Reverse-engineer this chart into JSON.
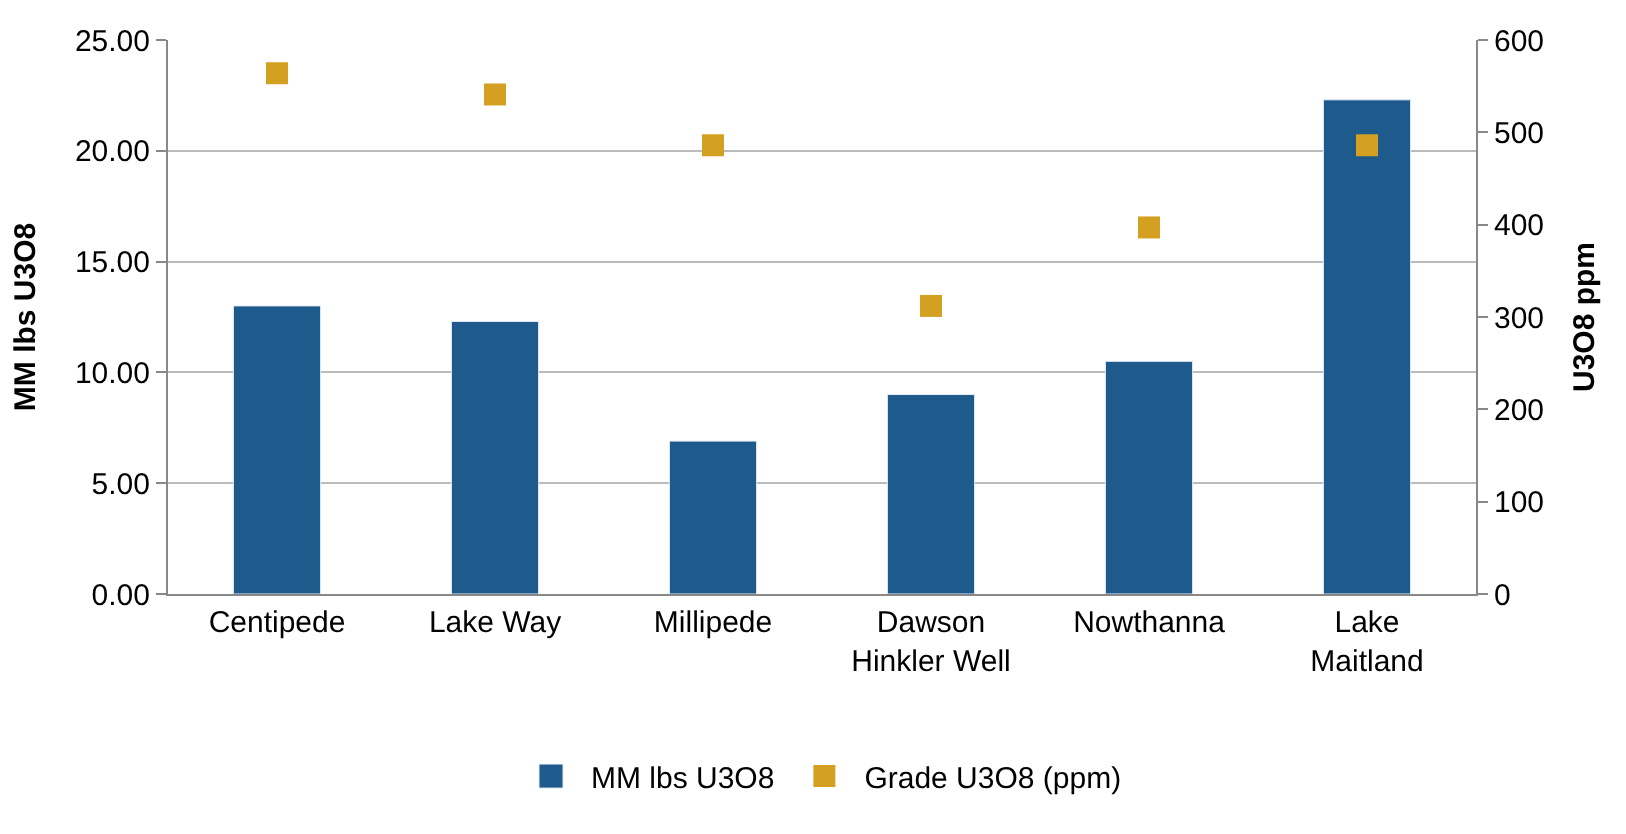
{
  "chart_data": {
    "type": "bar",
    "ylabel": "MM lbs U3O8",
    "y2label": "U3O8 ppm",
    "categories": [
      "Centipede",
      "Lake Way",
      "Millipede",
      "Dawson\nHinkler Well",
      "Nowthanna",
      "Lake\nMaitland"
    ],
    "series": [
      {
        "name": "MM lbs U3O8",
        "color": "#1f5a8c",
        "values": [
          13.0,
          12.3,
          6.9,
          9.0,
          10.5,
          22.3
        ]
      },
      {
        "name": "Grade U3O8 (ppm)",
        "type": "scatter",
        "axis": "y2",
        "marker": "square",
        "color": "#d4a021",
        "values": [
          564,
          541,
          486,
          312,
          397,
          486
        ]
      }
    ],
    "ylim": [
      0,
      25
    ],
    "yticks": [
      {
        "value": 0,
        "label": "0.00"
      },
      {
        "value": 5,
        "label": "5.00"
      },
      {
        "value": 10,
        "label": "10.00"
      },
      {
        "value": 15,
        "label": "15.00"
      },
      {
        "value": 20,
        "label": "20.00"
      },
      {
        "value": 25,
        "label": "25.00"
      }
    ],
    "y2lim": [
      0,
      600
    ],
    "y2ticks": [
      0,
      100,
      200,
      300,
      400,
      500,
      600
    ],
    "grid": "y",
    "legend": "bottom"
  }
}
